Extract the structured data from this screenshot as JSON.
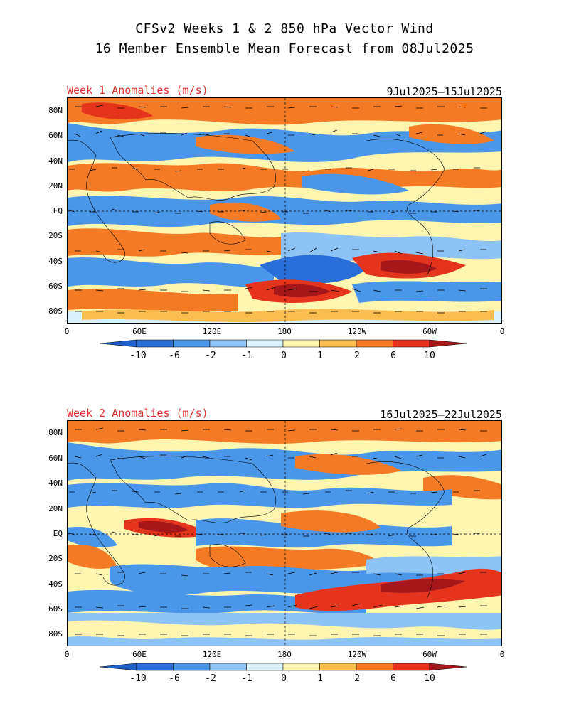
{
  "title": {
    "line1": "CFSv2 Weeks 1 & 2 850 hPa Vector Wind",
    "line2": "16 Member Ensemble Mean Forecast from 08Jul2025"
  },
  "panels": [
    {
      "label": "Week 1 Anomalies (m/s)",
      "dates": "9Jul2025—15Jul2025"
    },
    {
      "label": "Week 2 Anomalies (m/s)",
      "dates": "16Jul2025—22Jul2025"
    }
  ],
  "lat_labels": [
    "80N",
    "60N",
    "40N",
    "20N",
    "EQ",
    "20S",
    "40S",
    "60S",
    "80S"
  ],
  "lon_labels": [
    "0",
    "60E",
    "120E",
    "180",
    "120W",
    "60W",
    "0"
  ],
  "colorbar": {
    "labels": [
      "-10",
      "-6",
      "-2",
      "-1",
      "0",
      "1",
      "2",
      "6",
      "10"
    ],
    "colors": [
      "#2a6fd8",
      "#4a97ea",
      "#8ec3f5",
      "#d9f2fc",
      "#fdf5b0",
      "#fbbd4f",
      "#f47a26",
      "#e5341c",
      "#a6171c"
    ],
    "low_color": "#1f5fc8",
    "high_color": "#a6171c"
  }
}
